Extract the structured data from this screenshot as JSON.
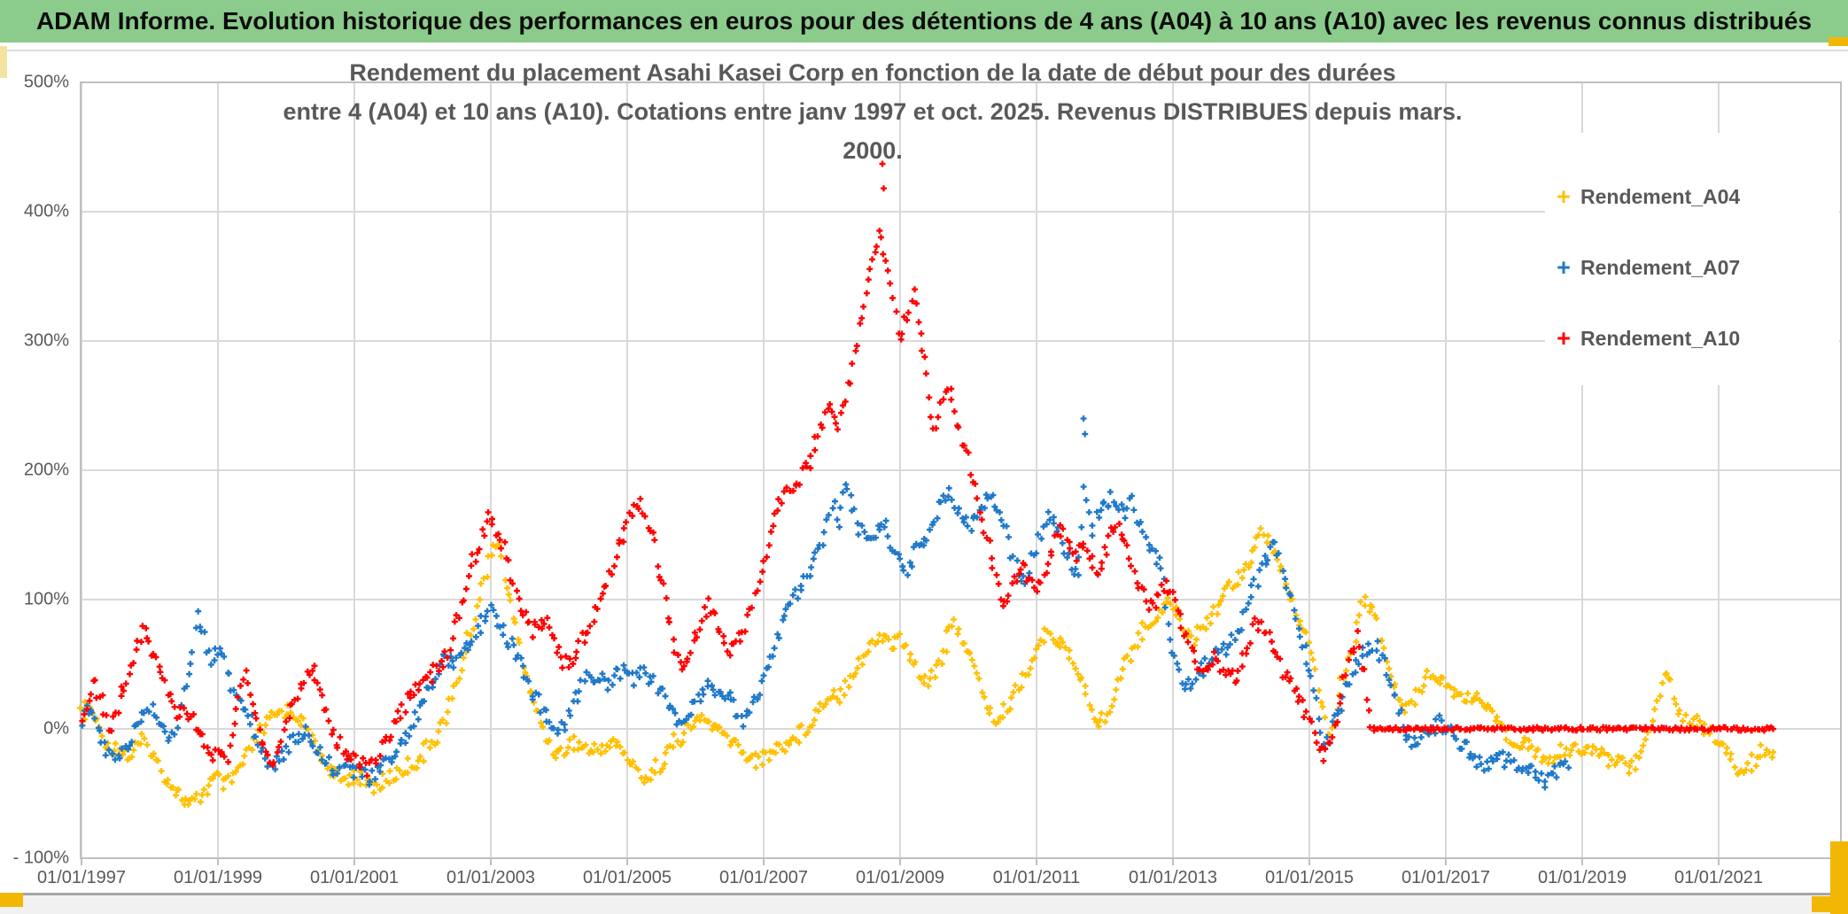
{
  "banner": {
    "title": "ADAM Informe. Evolution historique des performances en euros pour des détentions de 4 ans (A04) à 10 ans (A10) avec les revenus connus distribués",
    "bg_color": "#8bcb8b"
  },
  "chart_title": {
    "line1": "Rendement du placement Asahi Kasei Corp en fonction de la date de début pour des durées",
    "line2": "entre 4 (A04) et 10 ans (A10). Cotations entre janv 1997 et oct. 2025. Revenus DISTRIBUES depuis mars. 2000."
  },
  "legend": {
    "items": [
      {
        "label": "Rendement_A04",
        "color": "#FFC000"
      },
      {
        "label": "Rendement_A07",
        "color": "#1F78C8"
      },
      {
        "label": "Rendement_A10",
        "color": "#FF0000"
      }
    ]
  },
  "colors": {
    "gridline": "#d9d9d9",
    "plot_border": "#bfbfbf",
    "axis_text": "#595959",
    "accent_gold": "#f2b705",
    "accent_pale": "#f3e3a1"
  },
  "chart_data": {
    "type": "scatter",
    "marker": "plus",
    "title": "Rendement du placement Asahi Kasei Corp en fonction de la date de début pour des durées entre 4 (A04) et 10 ans (A10). Cotations entre janv 1997 et oct. 2025. Revenus DISTRIBUES depuis mars. 2000.",
    "grid": true,
    "legend_position": "right",
    "x_axis": {
      "ticks": [
        {
          "label": "01/01/1997",
          "year": 1997
        },
        {
          "label": "01/01/1999",
          "year": 1999
        },
        {
          "label": "01/01/2001",
          "year": 2001
        },
        {
          "label": "01/01/2003",
          "year": 2003
        },
        {
          "label": "01/01/2005",
          "year": 2005
        },
        {
          "label": "01/01/2007",
          "year": 2007
        },
        {
          "label": "01/01/2009",
          "year": 2009
        },
        {
          "label": "01/01/2011",
          "year": 2011
        },
        {
          "label": "01/01/2013",
          "year": 2013
        },
        {
          "label": "01/01/2015",
          "year": 2015
        },
        {
          "label": "01/01/2017",
          "year": 2017
        },
        {
          "label": "01/01/2019",
          "year": 2019
        },
        {
          "label": "01/01/2021",
          "year": 2021
        }
      ],
      "range_years": [
        1997.0,
        2022.8
      ]
    },
    "y_axis": {
      "ticks": [
        {
          "label": "500%",
          "value": 500
        },
        {
          "label": "400%",
          "value": 400
        },
        {
          "label": "300%",
          "value": 300
        },
        {
          "label": "200%",
          "value": 200
        },
        {
          "label": "100%",
          "value": 100
        },
        {
          "label": "0%",
          "value": 0
        },
        {
          "label": "- 100%",
          "value": -100
        }
      ],
      "range_percent": [
        -100,
        500
      ]
    },
    "series": [
      {
        "name": "Rendement_A04",
        "color": "#FFC000",
        "start": 1997.0,
        "step": 0.1,
        "values": [
          10,
          18,
          8,
          -5,
          -15,
          -12,
          -18,
          -22,
          -15,
          -10,
          -15,
          -25,
          -35,
          -42,
          -48,
          -55,
          -60,
          -55,
          -48,
          -42,
          -38,
          -45,
          -40,
          -32,
          -25,
          -15,
          -5,
          2,
          8,
          12,
          15,
          12,
          8,
          0,
          -10,
          -20,
          -28,
          -35,
          -40,
          -38,
          -35,
          -38,
          -42,
          -45,
          -42,
          -38,
          -35,
          -32,
          -28,
          -25,
          -20,
          -12,
          -5,
          5,
          18,
          35,
          55,
          75,
          95,
          115,
          140,
          145,
          120,
          95,
          70,
          45,
          25,
          10,
          -5,
          -15,
          -20,
          -15,
          -10,
          -12,
          -15,
          -18,
          -15,
          -12,
          -10,
          -15,
          -22,
          -30,
          -35,
          -38,
          -32,
          -25,
          -18,
          -10,
          -5,
          0,
          5,
          8,
          5,
          0,
          -5,
          -8,
          -12,
          -18,
          -22,
          -25,
          -22,
          -18,
          -15,
          -12,
          -10,
          -5,
          0,
          8,
          15,
          22,
          30,
          25,
          35,
          45,
          52,
          58,
          65,
          72,
          70,
          65,
          72,
          60,
          50,
          42,
          38,
          45,
          55,
          70,
          80,
          72,
          60,
          45,
          30,
          15,
          5,
          10,
          20,
          30,
          40,
          50,
          60,
          70,
          75,
          70,
          62,
          55,
          45,
          32,
          18,
          5,
          8,
          20,
          35,
          50,
          62,
          72,
          78,
          85,
          92,
          100,
          95,
          85,
          75,
          70,
          78,
          85,
          92,
          100,
          108,
          115,
          122,
          130,
          140,
          150,
          148,
          135,
          120,
          105,
          90,
          78,
          65,
          40,
          15,
          -8,
          20,
          40,
          60,
          80,
          100,
          95,
          80,
          60,
          40,
          25,
          12,
          20,
          32,
          40,
          45,
          40,
          35,
          30,
          25,
          22,
          28,
          22,
          15,
          8,
          2,
          -5,
          -10,
          -8,
          -12,
          -18,
          -22,
          -25,
          -22,
          -18,
          -15,
          -12,
          -15,
          -18,
          -15,
          -20,
          -25,
          -22,
          -25,
          -30,
          -25,
          -15,
          0,
          20,
          48,
          35,
          15,
          5,
          8,
          5,
          0,
          -5,
          -8,
          -15,
          -25,
          -35,
          -32,
          -25,
          -20,
          -15,
          -18
        ]
      },
      {
        "name": "Rendement_A07",
        "color": "#1F78C8",
        "start": 1997.0,
        "step": 0.1,
        "values": [
          8,
          15,
          5,
          -10,
          -20,
          -25,
          -18,
          -10,
          0,
          10,
          18,
          10,
          2,
          -8,
          5,
          25,
          50,
          88,
          70,
          55,
          62,
          50,
          35,
          25,
          15,
          5,
          -10,
          -22,
          -28,
          -25,
          -15,
          -8,
          -5,
          -2,
          -10,
          -18,
          -25,
          -30,
          -25,
          -28,
          -32,
          -36,
          -38,
          -35,
          -30,
          -25,
          -18,
          -10,
          -2,
          8,
          18,
          30,
          42,
          52,
          50,
          55,
          62,
          70,
          78,
          85,
          90,
          82,
          75,
          65,
          55,
          42,
          30,
          22,
          12,
          0,
          -5,
          8,
          20,
          30,
          38,
          42,
          38,
          35,
          40,
          45,
          42,
          38,
          45,
          40,
          35,
          30,
          20,
          8,
          0,
          10,
          22,
          30,
          35,
          30,
          25,
          22,
          15,
          8,
          15,
          25,
          40,
          55,
          70,
          85,
          95,
          105,
          115,
          125,
          135,
          150,
          175,
          160,
          195,
          170,
          155,
          145,
          150,
          160,
          155,
          140,
          130,
          120,
          135,
          145,
          150,
          160,
          175,
          185,
          175,
          165,
          155,
          165,
          175,
          180,
          175,
          165,
          145,
          125,
          115,
          125,
          140,
          155,
          165,
          155,
          140,
          125,
          115,
          185,
          155,
          165,
          175,
          180,
          172,
          168,
          175,
          160,
          150,
          140,
          130,
          100,
          60,
          40,
          30,
          38,
          45,
          50,
          55,
          60,
          65,
          70,
          80,
          95,
          110,
          125,
          135,
          140,
          125,
          105,
          85,
          65,
          45,
          20,
          -15,
          -5,
          10,
          25,
          40,
          50,
          58,
          65,
          62,
          50,
          35,
          15,
          0,
          -10,
          -8,
          -5,
          0,
          5,
          2,
          -5,
          -10,
          -15,
          -20,
          -25,
          -28,
          -25,
          -22,
          -25,
          -28,
          -30,
          -32,
          -35,
          -38,
          -40,
          -35,
          -32,
          -30
        ],
        "outliers": [
          [
            2011.69,
            240
          ],
          [
            2011.71,
            228
          ]
        ]
      },
      {
        "name": "Rendement_A10",
        "color": "#FF0000",
        "start": 1997.0,
        "step": 0.1,
        "values": [
          10,
          25,
          35,
          20,
          0,
          10,
          30,
          45,
          60,
          75,
          65,
          55,
          40,
          22,
          12,
          18,
          8,
          2,
          -12,
          -20,
          -18,
          -25,
          -10,
          30,
          45,
          20,
          -5,
          -20,
          -28,
          -15,
          5,
          20,
          30,
          40,
          45,
          30,
          10,
          -5,
          -12,
          -18,
          -22,
          -28,
          -30,
          -25,
          -15,
          -5,
          5,
          15,
          25,
          30,
          35,
          40,
          45,
          50,
          65,
          85,
          105,
          125,
          140,
          155,
          165,
          150,
          140,
          120,
          100,
          85,
          75,
          80,
          85,
          70,
          60,
          50,
          55,
          65,
          75,
          85,
          100,
          115,
          130,
          145,
          160,
          172,
          175,
          160,
          140,
          115,
          90,
          60,
          45,
          55,
          70,
          85,
          95,
          85,
          70,
          60,
          65,
          75,
          90,
          110,
          130,
          150,
          170,
          185,
          180,
          190,
          200,
          210,
          225,
          240,
          250,
          235,
          255,
          280,
          310,
          340,
          365,
          385,
          360,
          330,
          300,
          320,
          340,
          310,
          270,
          230,
          250,
          265,
          245,
          225,
          210,
          185,
          160,
          140,
          115,
          90,
          100,
          120,
          130,
          115,
          105,
          120,
          135,
          150,
          155,
          145,
          135,
          140,
          130,
          125,
          135,
          150,
          160,
          145,
          125,
          110,
          100,
          95,
          105,
          110,
          100,
          85,
          70,
          55,
          50,
          45,
          55,
          50,
          45,
          40,
          50,
          65,
          80,
          85,
          70,
          55,
          45,
          40,
          30,
          20,
          5,
          -10,
          -20,
          -10,
          10,
          35,
          55,
          70,
          40
        ],
        "outliers": [
          [
            2008.74,
            437
          ],
          [
            2008.76,
            418
          ]
        ],
        "flat_zero": {
          "from": 2015.9,
          "to": 2021.8
        }
      }
    ]
  }
}
